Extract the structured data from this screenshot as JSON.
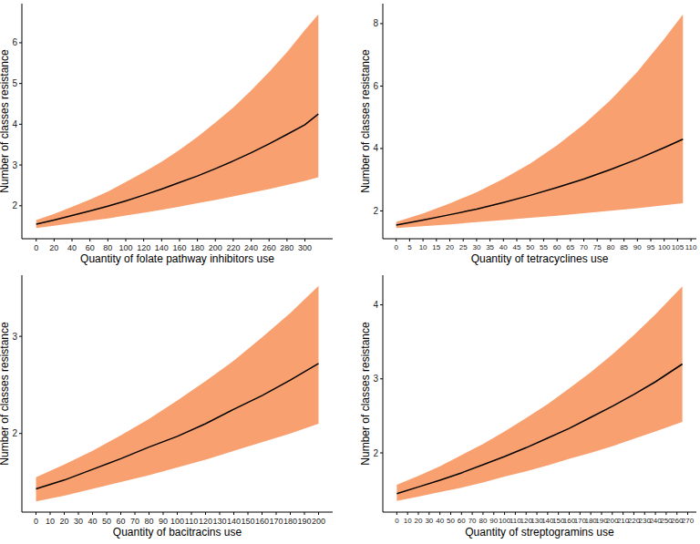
{
  "chart_data": [
    {
      "type": "line",
      "x_label": "Quantity of folate pathway inhibitors use",
      "y_label": "Number of classes resistance",
      "color": "#000000",
      "x": [
        0,
        20,
        40,
        60,
        80,
        100,
        120,
        140,
        160,
        180,
        200,
        220,
        240,
        260,
        280,
        300,
        315
      ],
      "values": [
        1.55,
        1.65,
        1.76,
        1.87,
        1.99,
        2.12,
        2.26,
        2.41,
        2.57,
        2.73,
        2.91,
        3.1,
        3.3,
        3.52,
        3.75,
        3.99,
        4.25
      ],
      "ci_lower": [
        1.45,
        1.51,
        1.57,
        1.63,
        1.69,
        1.76,
        1.83,
        1.9,
        1.98,
        2.06,
        2.14,
        2.23,
        2.32,
        2.41,
        2.51,
        2.61,
        2.7
      ],
      "ci_upper": [
        1.65,
        1.8,
        1.97,
        2.15,
        2.35,
        2.58,
        2.82,
        3.08,
        3.37,
        3.69,
        4.04,
        4.41,
        4.83,
        5.28,
        5.77,
        6.31,
        6.7
      ],
      "xlim": [
        -16,
        331
      ],
      "ylim": [
        1.19,
        6.96
      ],
      "xticks": [
        0,
        20,
        40,
        60,
        80,
        100,
        120,
        140,
        160,
        180,
        200,
        220,
        240,
        260,
        280,
        300
      ],
      "yticks": [
        2,
        3,
        4,
        5,
        6
      ]
    },
    {
      "type": "line",
      "x_label": "Quantity of tetracyclines use",
      "y_label": "Number of classes resistance",
      "color": "#000000",
      "x": [
        0,
        10,
        20,
        30,
        40,
        50,
        60,
        70,
        80,
        90,
        100,
        107
      ],
      "values": [
        1.55,
        1.71,
        1.88,
        2.06,
        2.27,
        2.5,
        2.75,
        3.02,
        3.33,
        3.66,
        4.03,
        4.3
      ],
      "ci_lower": [
        1.45,
        1.51,
        1.57,
        1.64,
        1.71,
        1.78,
        1.85,
        1.93,
        2.01,
        2.09,
        2.18,
        2.25
      ],
      "ci_upper": [
        1.65,
        1.92,
        2.24,
        2.6,
        3.03,
        3.52,
        4.1,
        4.77,
        5.55,
        6.46,
        7.51,
        8.3
      ],
      "xlim": [
        -5,
        112
      ],
      "ylim": [
        1.11,
        8.64
      ],
      "xticks": [
        0,
        5,
        10,
        15,
        20,
        25,
        30,
        35,
        40,
        45,
        50,
        55,
        60,
        65,
        70,
        75,
        80,
        85,
        90,
        95,
        100,
        105,
        110
      ],
      "yticks": [
        2,
        4,
        6,
        8
      ]
    },
    {
      "type": "line",
      "x_label": "Quantity of bacitracins use",
      "y_label": "Number of classes resistance",
      "color": "#000000",
      "x": [
        0,
        20,
        40,
        60,
        80,
        100,
        120,
        140,
        160,
        180,
        200
      ],
      "values": [
        1.43,
        1.52,
        1.63,
        1.74,
        1.86,
        1.97,
        2.1,
        2.25,
        2.39,
        2.55,
        2.72
      ],
      "ci_lower": [
        1.3,
        1.36,
        1.43,
        1.5,
        1.57,
        1.65,
        1.73,
        1.82,
        1.91,
        2.0,
        2.1
      ],
      "ci_upper": [
        1.55,
        1.68,
        1.82,
        1.98,
        2.15,
        2.34,
        2.54,
        2.75,
        2.99,
        3.24,
        3.52
      ],
      "xlim": [
        -10,
        210
      ],
      "ylim": [
        1.19,
        3.63
      ],
      "xticks": [
        0,
        10,
        20,
        30,
        40,
        50,
        60,
        70,
        80,
        90,
        100,
        110,
        120,
        130,
        140,
        150,
        160,
        170,
        180,
        190,
        200
      ],
      "yticks": [
        2,
        3
      ]
    },
    {
      "type": "line",
      "x_label": "Quantity of streptogramins use",
      "y_label": "Number of classes resistance",
      "color": "#000000",
      "x": [
        0,
        20,
        40,
        60,
        80,
        100,
        120,
        140,
        160,
        180,
        200,
        220,
        240,
        265
      ],
      "values": [
        1.45,
        1.54,
        1.63,
        1.73,
        1.84,
        1.95,
        2.07,
        2.2,
        2.33,
        2.48,
        2.63,
        2.79,
        2.96,
        3.2
      ],
      "ci_lower": [
        1.35,
        1.41,
        1.47,
        1.53,
        1.6,
        1.68,
        1.75,
        1.83,
        1.92,
        2.0,
        2.09,
        2.19,
        2.29,
        2.42
      ],
      "ci_upper": [
        1.57,
        1.69,
        1.82,
        1.97,
        2.12,
        2.29,
        2.47,
        2.66,
        2.87,
        3.09,
        3.33,
        3.59,
        3.87,
        4.25
      ],
      "xlim": [
        -13,
        278
      ],
      "ylim": [
        1.2,
        4.4
      ],
      "xticks": [
        0,
        10,
        20,
        30,
        40,
        50,
        60,
        70,
        80,
        90,
        100,
        110,
        120,
        130,
        140,
        150,
        160,
        170,
        180,
        190,
        200,
        210,
        220,
        230,
        240,
        250,
        260,
        270
      ],
      "yticks": [
        2,
        3,
        4
      ]
    }
  ]
}
